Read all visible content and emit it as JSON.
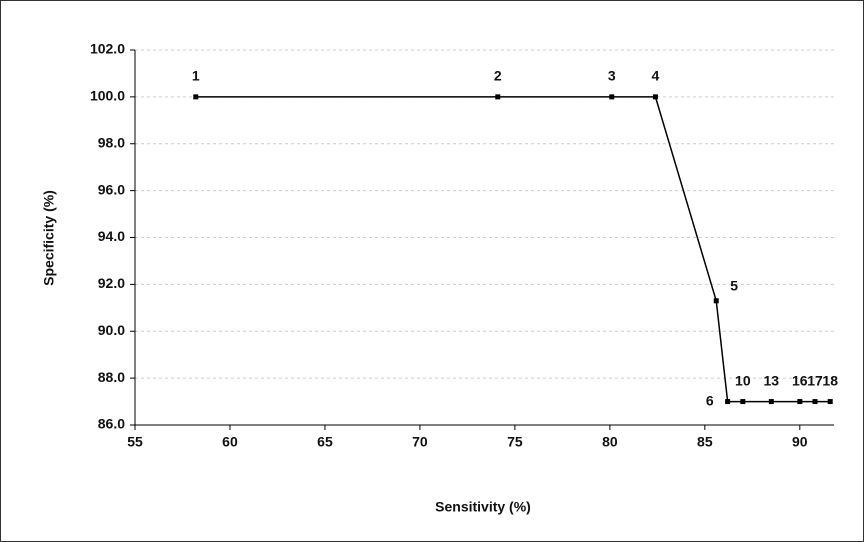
{
  "chart_data": {
    "type": "line",
    "x_label": "Sensitivity (%)",
    "y_label": "Specificity (%)",
    "x": [
      58.2,
      74.1,
      80.1,
      82.4,
      85.6,
      86.2,
      87.0,
      88.5,
      90.0,
      90.8,
      91.6
    ],
    "values": [
      100,
      100,
      100,
      100,
      91.3,
      87,
      87,
      87,
      87,
      87,
      87
    ],
    "point_labels": [
      "1",
      "2",
      "3",
      "4",
      "5",
      "6",
      "10",
      "13",
      "16",
      "17",
      "18"
    ],
    "color": "#000000",
    "xlim": [
      55,
      91.8
    ],
    "xticks": [
      55,
      60,
      65,
      70,
      75,
      80,
      85,
      90
    ],
    "ylim": [
      86,
      102
    ],
    "yticks": [
      {
        "value": 86,
        "label": "86.0"
      },
      {
        "value": 88,
        "label": "88.0"
      },
      {
        "value": 90,
        "label": "90.0"
      },
      {
        "value": 92,
        "label": "92.0"
      },
      {
        "value": 94,
        "label": "94.0"
      },
      {
        "value": 96,
        "label": "96.0"
      },
      {
        "value": 98,
        "label": "98.0"
      },
      {
        "value": 100,
        "label": "100.0"
      },
      {
        "value": 102,
        "label": "102.0"
      }
    ],
    "grid": true
  }
}
